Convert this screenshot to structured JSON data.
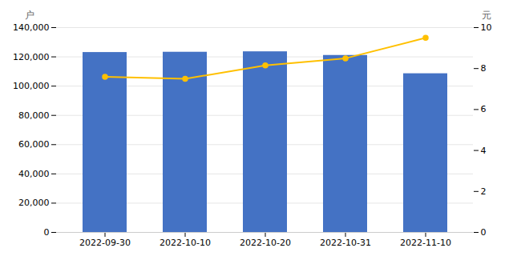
{
  "chart_data": {
    "type": "bar",
    "categories": [
      "2022-09-30",
      "2022-10-10",
      "2022-10-20",
      "2022-10-31",
      "2022-11-10"
    ],
    "series": [
      {
        "type": "bar",
        "color": "#4472C4",
        "values": [
          123000,
          123200,
          123500,
          121000,
          108500
        ]
      },
      {
        "type": "line",
        "color": "#FFC000",
        "marker": "circle",
        "axis": "y2",
        "values": [
          7.6,
          7.5,
          8.15,
          8.5,
          9.5
        ]
      }
    ],
    "ylabel": "户",
    "y2label": "元",
    "ylim": [
      0,
      140000
    ],
    "yticks": [
      0,
      {
        "value": 20000,
        "label": "20,000"
      },
      {
        "value": 40000,
        "label": "40,000"
      },
      {
        "value": 60000,
        "label": "60,000"
      },
      {
        "value": 80000,
        "label": "80,000"
      },
      {
        "value": 100000,
        "label": "100,000"
      },
      {
        "value": 120000,
        "label": "120,000"
      },
      {
        "value": 140000,
        "label": "140,000"
      }
    ],
    "y2lim": [
      0,
      10
    ],
    "y2ticks": [
      0,
      2,
      4,
      6,
      8,
      10
    ],
    "grid": true
  }
}
